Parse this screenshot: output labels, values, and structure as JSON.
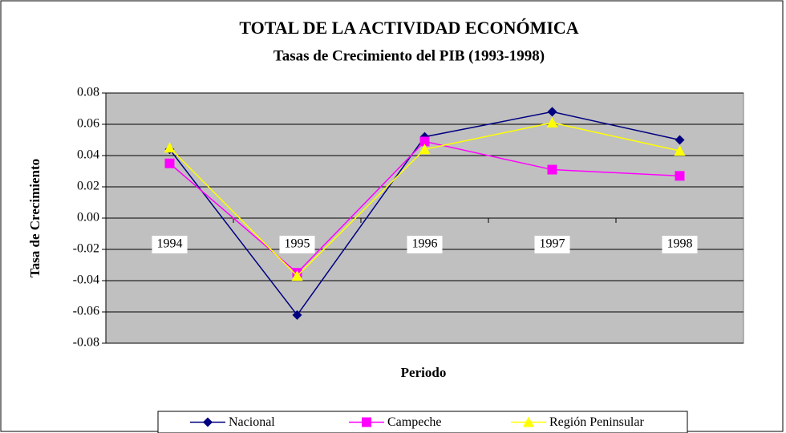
{
  "chart_data": {
    "type": "line",
    "title": "TOTAL DE LA ACTIVIDAD ECONÓMICA",
    "subtitle": "Tasas de Crecimiento del PIB (1993-1998)",
    "x_label": "Periodo",
    "y_label": "Tasa de Crecimiento",
    "categories": [
      "1994",
      "1995",
      "1996",
      "1997",
      "1998"
    ],
    "series": [
      {
        "name": "Nacional",
        "color": "#000080",
        "marker": "diamond",
        "values": [
          0.044,
          -0.062,
          0.052,
          0.068,
          0.05
        ]
      },
      {
        "name": "Campeche",
        "color": "#ff00ff",
        "marker": "square",
        "values": [
          0.035,
          -0.035,
          0.049,
          0.031,
          0.027
        ]
      },
      {
        "name": "Región Peninsular",
        "color": "#ffff00",
        "marker": "triangle",
        "values": [
          0.045,
          -0.037,
          0.044,
          0.061,
          0.043
        ]
      }
    ],
    "ylim": [
      -0.08,
      0.08
    ],
    "yticks": [
      -0.08,
      -0.06,
      -0.04,
      -0.02,
      {
        "value": 0,
        "label": "0.00"
      },
      0.02,
      0.04,
      0.06,
      0.08
    ],
    "grid": true,
    "legend": "bottom"
  }
}
